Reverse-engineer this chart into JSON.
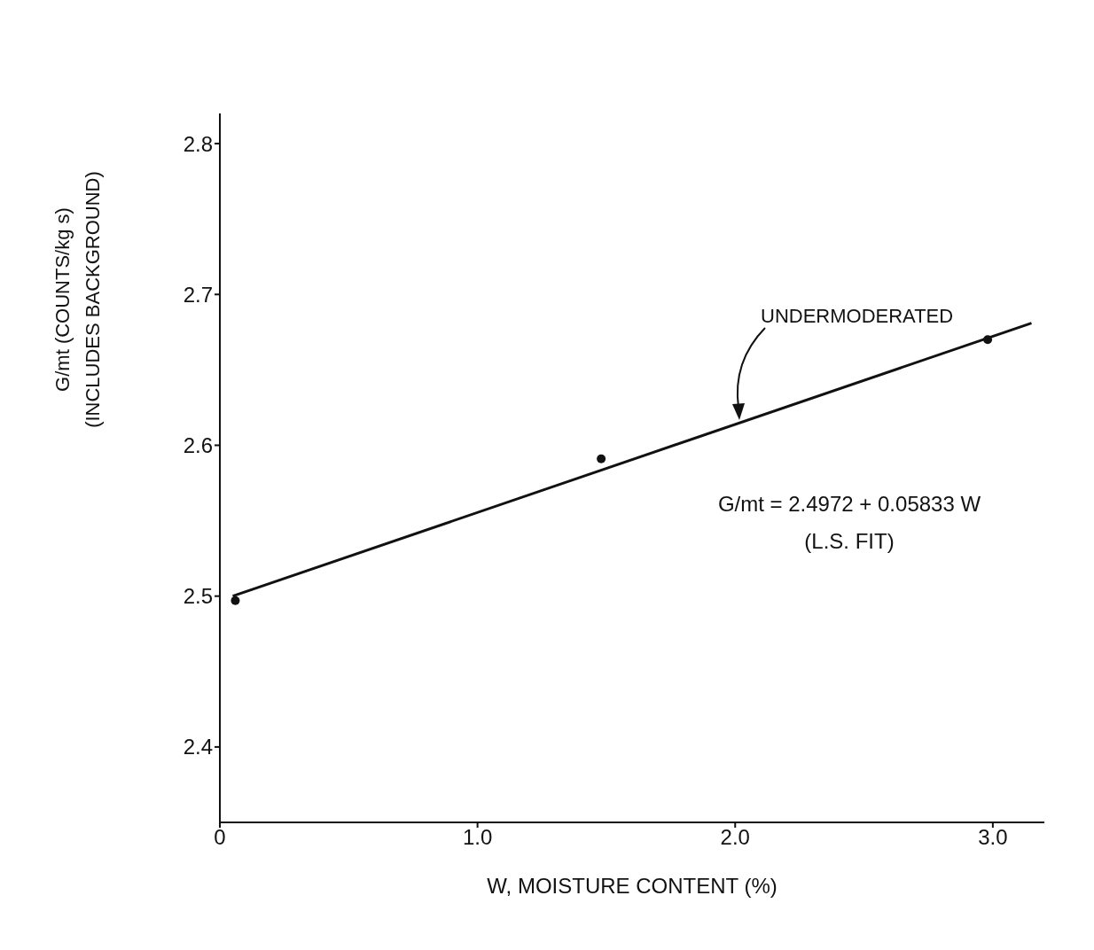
{
  "chart_data": {
    "type": "scatter",
    "xlabel": "W, MOISTURE CONTENT (%)",
    "ylabel": "G/mt (COUNTS/kg s) (INCLUDES BACKGROUND)",
    "xlim": [
      0,
      3.2
    ],
    "ylim": [
      2.35,
      2.82
    ],
    "xticks": [
      {
        "value": 0,
        "label": "0"
      },
      {
        "value": 1,
        "label": "1.0"
      },
      {
        "value": 2,
        "label": "2.0"
      },
      {
        "value": 3,
        "label": "3.0"
      }
    ],
    "yticks": [
      2.4,
      2.5,
      2.6,
      2.7,
      2.8
    ],
    "series": [
      {
        "marker": "circle",
        "color": "#111111",
        "x": [
          0.06,
          1.48,
          2.98
        ],
        "values": [
          2.497,
          2.591,
          2.67
        ]
      },
      {
        "type": "line",
        "color": "#111111",
        "line_style": "solid",
        "x": [
          0.05,
          3.15
        ],
        "values": [
          2.5,
          2.681
        ]
      }
    ],
    "annotations": [
      "UNDERMODERATED",
      "G/mt = 2.4972 + 0.05833 W",
      "(L.S. FIT)"
    ]
  }
}
